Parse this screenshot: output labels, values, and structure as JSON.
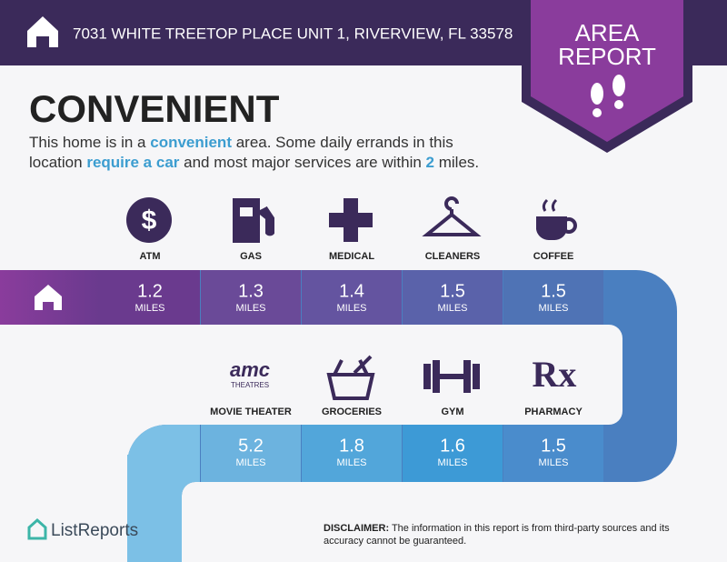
{
  "header": {
    "address": "7031 WHITE TREETOP PLACE UNIT 1, RIVERVIEW, FL 33578"
  },
  "badge": {
    "line1": "AREA",
    "line2": "REPORT"
  },
  "heading": "CONVENIENT",
  "description": [
    "This home is in a ",
    "convenient",
    " area. Some daily errands in this location ",
    "require a car",
    " and most major services are within ",
    "2",
    " miles."
  ],
  "unit": "MILES",
  "amenities": [
    {
      "label": "ATM",
      "distance": 1.2
    },
    {
      "label": "GAS",
      "distance": 1.3
    },
    {
      "label": "MEDICAL",
      "distance": 1.4
    },
    {
      "label": "CLEANERS",
      "distance": 1.5
    },
    {
      "label": "COFFEE",
      "distance": 1.5
    },
    {
      "label": "MOVIE THEATER",
      "distance": 5.2
    },
    {
      "label": "GROCERIES",
      "distance": 1.8
    },
    {
      "label": "GYM",
      "distance": 1.6
    },
    {
      "label": "PHARMACY",
      "distance": 1.5
    }
  ],
  "icons": {
    "atm": "$",
    "amc": "amc",
    "amc_sub": "THEATRES",
    "pharmacy": "Rx"
  },
  "footer": {
    "brand": "ListReports",
    "disclaimer_label": "DISCLAIMER:",
    "disclaimer": " The information in this report is from third-party sources and its accuracy cannot be guaranteed."
  }
}
